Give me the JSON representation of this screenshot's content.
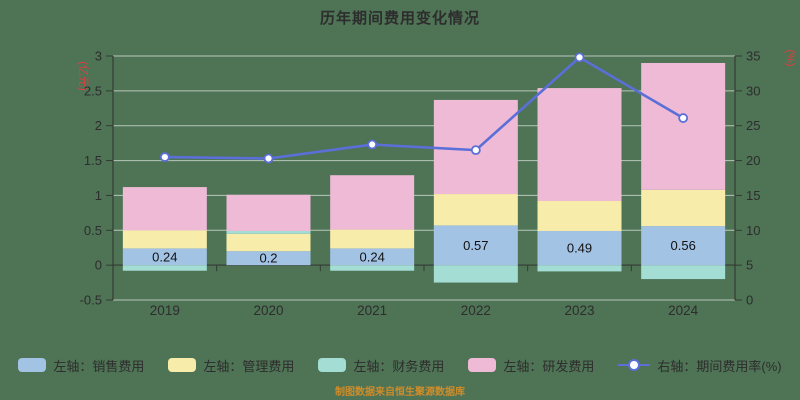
{
  "watermark": "制图数据来自恒生聚源数据库",
  "colors": {
    "background": "#4e7355",
    "sales": "#a3c3e5",
    "management": "#f8ecab",
    "finance": "#a4ddd3",
    "rnd": "#eebad6",
    "line": "#5b6fd8",
    "marker_fill": "#ffffff",
    "grid": "#ffffff99",
    "axis": "#333c33",
    "text": "#2d2d2d",
    "axis_name": "#e03e3e",
    "watermark": "#cf8d2a",
    "bar_label": "#111111"
  },
  "chart_data": {
    "type": "bar",
    "title": "历年期间费用变化情况",
    "categories": [
      "2019",
      "2020",
      "2021",
      "2022",
      "2023",
      "2024"
    ],
    "series": [
      {
        "name": "左轴：销售费用",
        "type": "bar",
        "stack": true,
        "axis": "left",
        "color_key": "sales",
        "values": [
          0.24,
          0.2,
          0.24,
          0.57,
          0.49,
          0.56
        ],
        "labels": [
          "0.24",
          "0.2",
          "0.24",
          "0.57",
          "0.49",
          "0.56"
        ]
      },
      {
        "name": "左轴：管理费用",
        "type": "bar",
        "stack": true,
        "axis": "left",
        "color_key": "management",
        "values": [
          0.26,
          0.25,
          0.27,
          0.45,
          0.43,
          0.52
        ]
      },
      {
        "name": "左轴：财务费用",
        "type": "bar",
        "stack": true,
        "axis": "left",
        "color_key": "finance",
        "values": [
          -0.08,
          0.04,
          -0.08,
          -0.25,
          -0.09,
          -0.2
        ]
      },
      {
        "name": "左轴：研发费用",
        "type": "bar",
        "stack": true,
        "axis": "left",
        "color_key": "rnd",
        "values": [
          0.62,
          0.52,
          0.78,
          1.35,
          1.62,
          1.82
        ]
      },
      {
        "name": "右轴：期间费用率(%)",
        "type": "line",
        "axis": "right",
        "color_key": "line",
        "values": [
          20.5,
          20.3,
          22.3,
          21.5,
          34.8,
          26.1
        ]
      }
    ],
    "left_axis": {
      "name": "(亿元)",
      "min": -0.5,
      "max": 3,
      "interval": 0.5,
      "ticks": [
        "3",
        "2.5",
        "2",
        "1.5",
        "1",
        "0.5",
        "0",
        "-0.5"
      ]
    },
    "right_axis": {
      "name": "(%)",
      "min": 0,
      "max": 35,
      "interval": 5,
      "ticks": [
        "35",
        "30",
        "25",
        "20",
        "15",
        "10",
        "5",
        "0"
      ]
    },
    "grid": true,
    "legend_position": "bottom"
  },
  "legend": {
    "items": [
      {
        "label": "左轴：销售费用",
        "marker": "rect",
        "color_key": "sales"
      },
      {
        "label": "左轴：管理费用",
        "marker": "rect",
        "color_key": "management"
      },
      {
        "label": "左轴：财务费用",
        "marker": "rect",
        "color_key": "finance"
      },
      {
        "label": "左轴：研发费用",
        "marker": "rect",
        "color_key": "rnd"
      },
      {
        "label": "右轴：期间费用率(%)",
        "marker": "line",
        "color_key": "line"
      }
    ]
  }
}
